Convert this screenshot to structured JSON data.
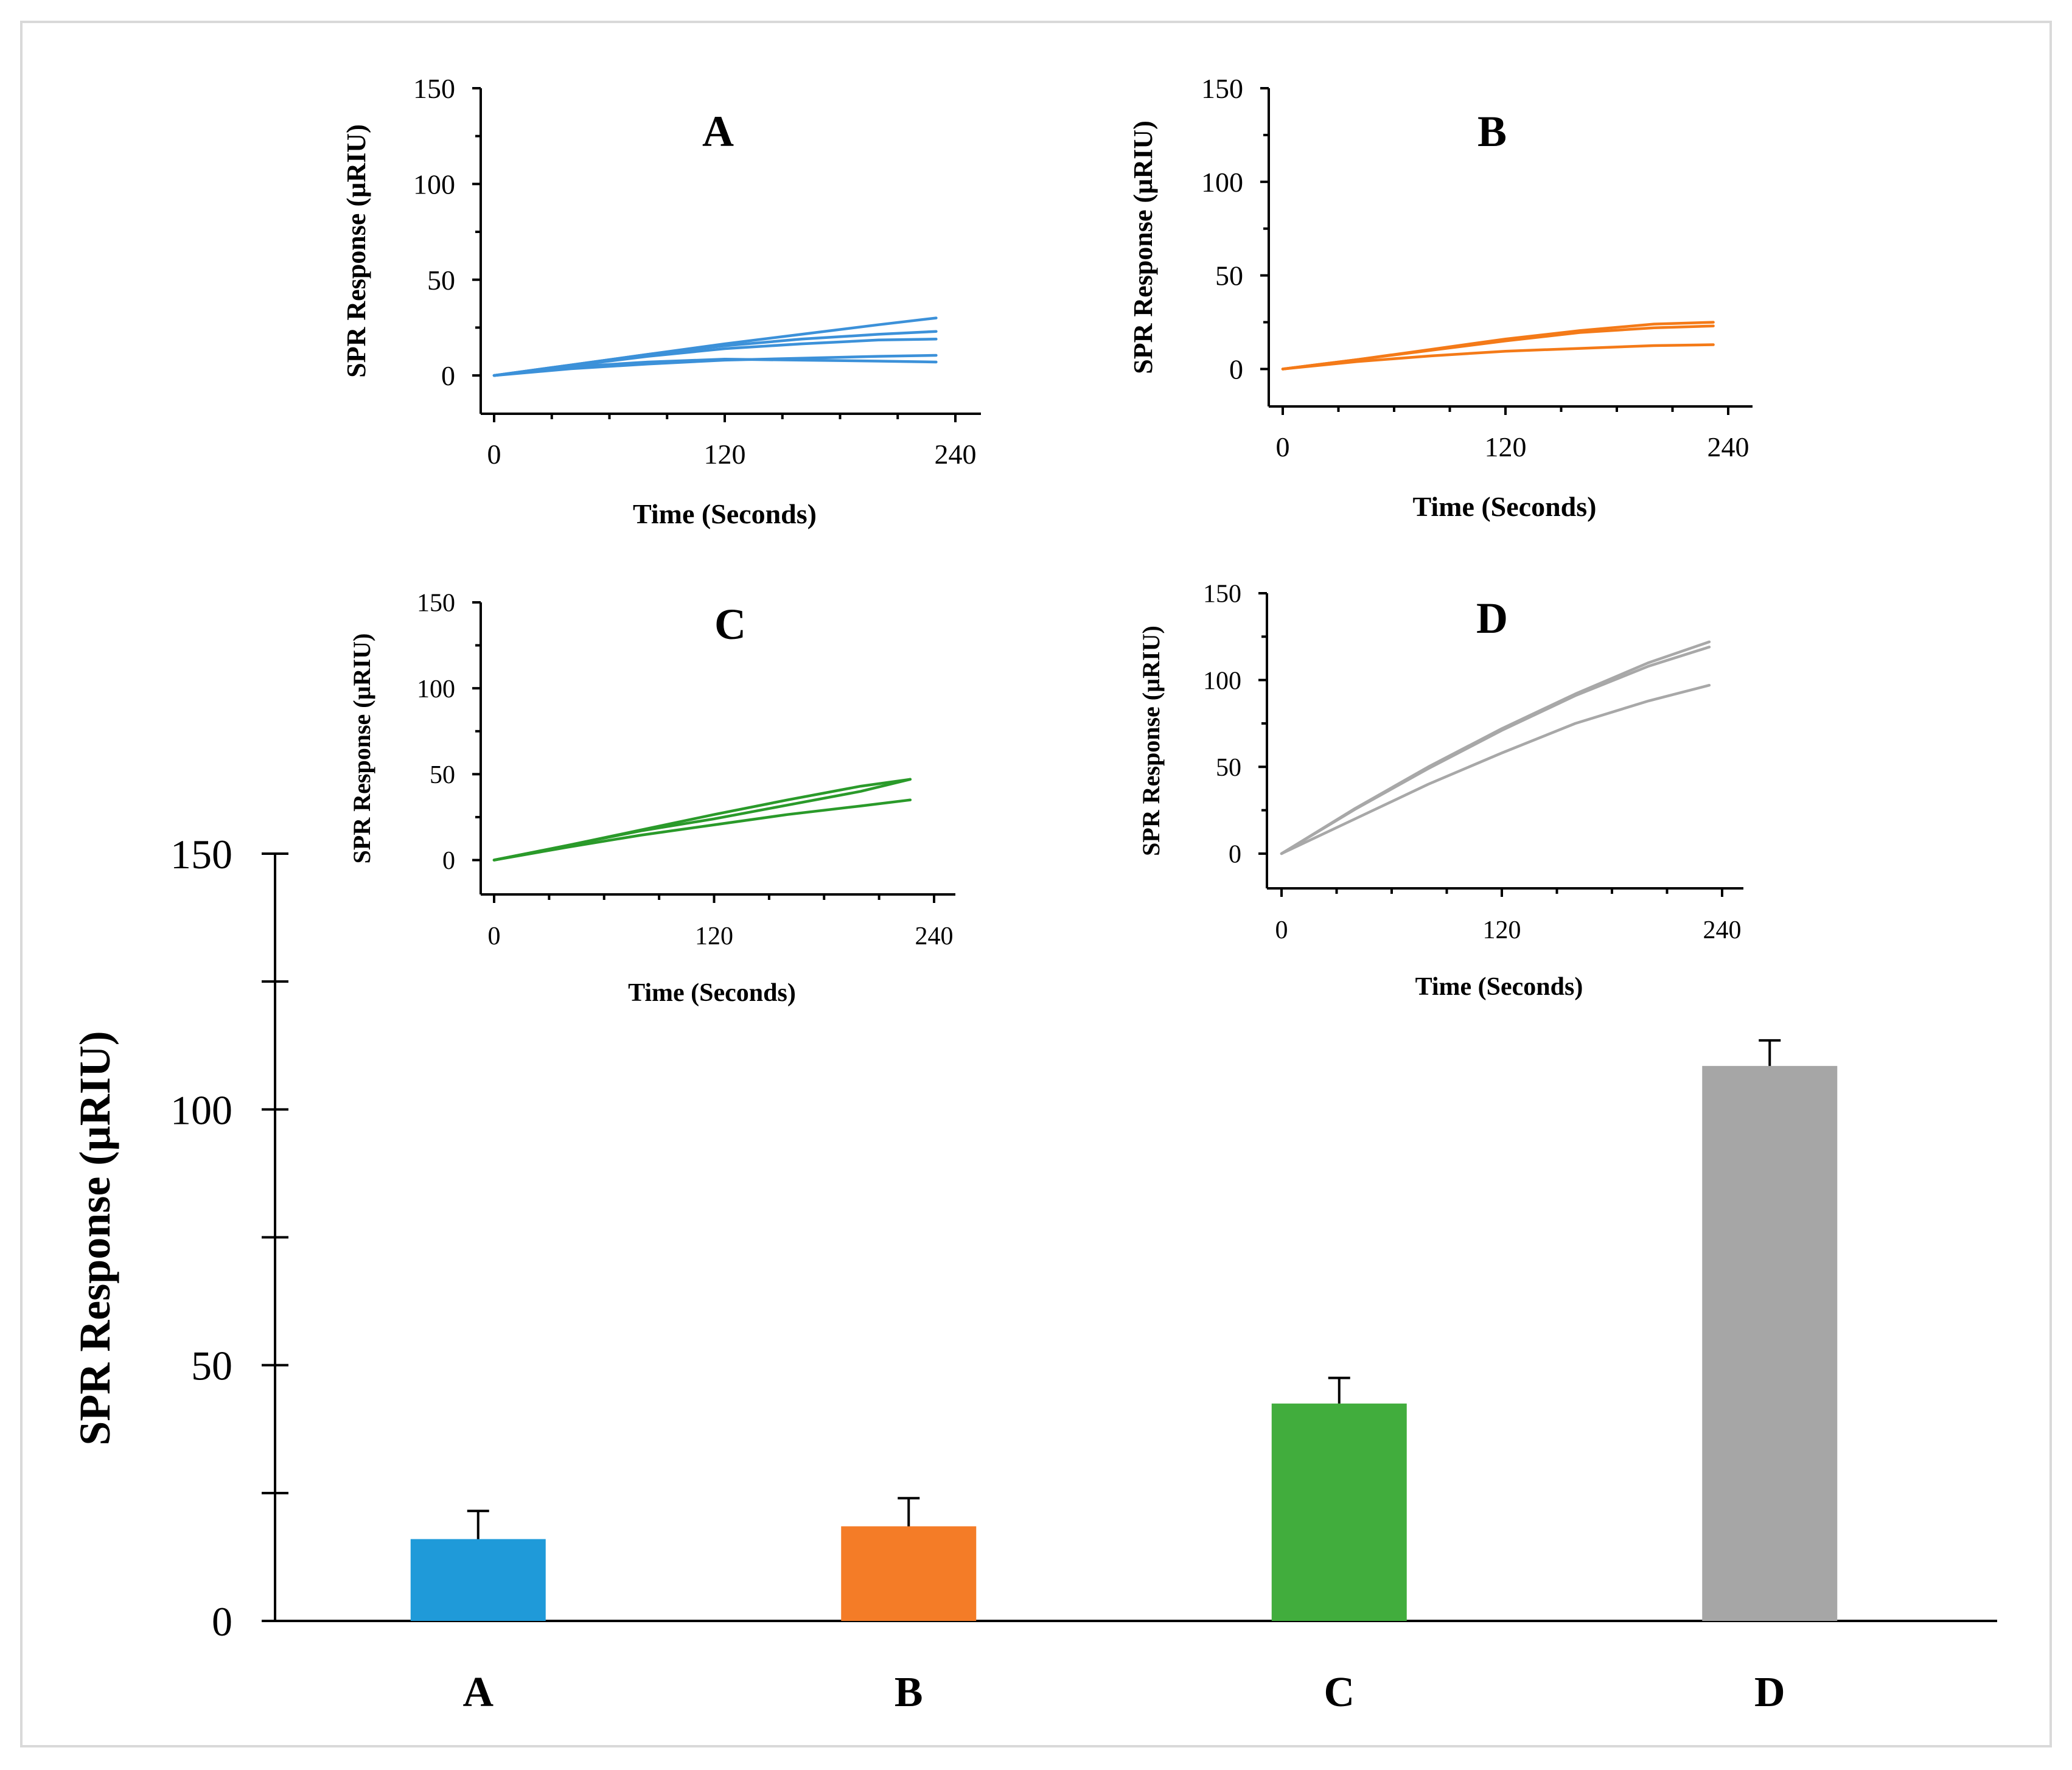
{
  "chart_data": [
    {
      "type": "bar",
      "categories": [
        "A",
        "B",
        "C",
        "D"
      ],
      "values": [
        16,
        18.5,
        42.5,
        108.5
      ],
      "error_plus": [
        5.5,
        5.5,
        5,
        5
      ],
      "colors": [
        "#1f9ad9",
        "#f47c27",
        "#41ad3d",
        "#a6a6a6"
      ],
      "ylabel": "SPR Response (µRIU)",
      "xlabel": "",
      "ylim": [
        0,
        150
      ],
      "yticks": [
        "0",
        "50",
        "100",
        "150"
      ],
      "grid": false
    },
    {
      "type": "line",
      "title": "A",
      "color": "#3c91d9",
      "xlabel": "Time (Seconds)",
      "ylabel": "SPR Response (µRIU)",
      "xlim": [
        0,
        240
      ],
      "ylim": [
        -20,
        150
      ],
      "xticks": [
        "0",
        "120",
        "240"
      ],
      "yticks": [
        "0",
        "50",
        "100",
        "150"
      ],
      "series": [
        {
          "x": [
            0,
            40,
            80,
            120,
            160,
            200,
            230
          ],
          "values": [
            0,
            5.5,
            11,
            16.5,
            21.5,
            26.5,
            30
          ]
        },
        {
          "x": [
            0,
            40,
            80,
            120,
            160,
            200,
            230
          ],
          "values": [
            0,
            5.5,
            11,
            15.5,
            19,
            21.5,
            23
          ]
        },
        {
          "x": [
            0,
            40,
            80,
            120,
            160,
            200,
            230
          ],
          "values": [
            0,
            5,
            10,
            14,
            16.5,
            18.5,
            19
          ]
        },
        {
          "x": [
            0,
            40,
            80,
            120,
            160,
            200,
            230
          ],
          "values": [
            0,
            3.5,
            6,
            8,
            9,
            10,
            10.5
          ]
        },
        {
          "x": [
            0,
            40,
            80,
            120,
            160,
            200,
            230
          ],
          "values": [
            0,
            4.5,
            7,
            8.5,
            8,
            7.5,
            7
          ]
        }
      ]
    },
    {
      "type": "line",
      "title": "B",
      "color": "#f47a18",
      "xlabel": "Time (Seconds)",
      "ylabel": "SPR Response (µRIU)",
      "xlim": [
        0,
        240
      ],
      "ylim": [
        -20,
        150
      ],
      "xticks": [
        "0",
        "120",
        "240"
      ],
      "yticks": [
        "0",
        "50",
        "100",
        "150"
      ],
      "series": [
        {
          "x": [
            0,
            40,
            80,
            120,
            160,
            200,
            232
          ],
          "values": [
            0,
            5,
            10.5,
            16,
            20.5,
            24,
            25
          ]
        },
        {
          "x": [
            0,
            40,
            80,
            120,
            160,
            200,
            232
          ],
          "values": [
            0,
            5,
            10,
            15,
            19.5,
            22,
            23
          ]
        },
        {
          "x": [
            0,
            40,
            80,
            120,
            160,
            200,
            232
          ],
          "values": [
            0,
            4,
            7,
            9.5,
            11,
            12.5,
            13
          ]
        }
      ]
    },
    {
      "type": "line",
      "title": "C",
      "color": "#2a9a2a",
      "xlabel": "Time (Seconds)",
      "ylabel": "SPR Response (µRIU)",
      "xlim": [
        0,
        240
      ],
      "ylim": [
        -20,
        150
      ],
      "xticks": [
        "0",
        "120",
        "240"
      ],
      "yticks": [
        "0",
        "50",
        "100",
        "150"
      ],
      "series": [
        {
          "x": [
            0,
            40,
            80,
            120,
            160,
            200,
            227
          ],
          "values": [
            0,
            8.5,
            17.5,
            26.5,
            35,
            43,
            47
          ]
        },
        {
          "x": [
            0,
            40,
            80,
            120,
            160,
            200,
            227
          ],
          "values": [
            0,
            8.5,
            17,
            24,
            32,
            40,
            47
          ]
        },
        {
          "x": [
            0,
            40,
            80,
            120,
            160,
            200,
            227
          ],
          "values": [
            0,
            7.5,
            14.5,
            20.5,
            26.5,
            31.5,
            35
          ]
        }
      ]
    },
    {
      "type": "line",
      "title": "D",
      "color": "#a8a8a8",
      "xlabel": "Time (Seconds)",
      "ylabel": "SPR Response (µRIU)",
      "xlim": [
        0,
        240
      ],
      "ylim": [
        -20,
        150
      ],
      "xticks": [
        "0",
        "120",
        "240"
      ],
      "yticks": [
        "0",
        "50",
        "100",
        "150"
      ],
      "series": [
        {
          "x": [
            0,
            40,
            80,
            120,
            160,
            200,
            233
          ],
          "values": [
            0,
            26,
            50,
            72,
            92,
            110,
            122
          ]
        },
        {
          "x": [
            0,
            40,
            80,
            120,
            160,
            200,
            233
          ],
          "values": [
            0,
            25.5,
            49,
            71,
            91,
            108,
            119
          ]
        },
        {
          "x": [
            0,
            40,
            80,
            120,
            160,
            200,
            233
          ],
          "values": [
            0,
            20,
            40,
            58,
            75,
            88,
            97
          ]
        }
      ]
    }
  ]
}
